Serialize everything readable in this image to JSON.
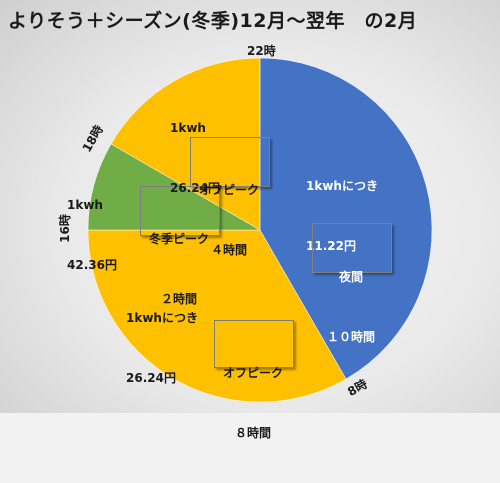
{
  "title": "よりそう＋シーズン(冬季)12月〜翌年　の2月",
  "chart_data": {
    "type": "pie",
    "slices": [
      {
        "period": "夜間",
        "hours": 10,
        "price": "11.22円",
        "color": "#4472c4"
      },
      {
        "period": "オフピーク",
        "hours": 8,
        "price": "26.24円",
        "color": "#ffc000"
      },
      {
        "period": "冬季ピーク",
        "hours": 2,
        "price": "42.36円",
        "color": "#70ad47"
      },
      {
        "period": "オフピーク",
        "hours": 4,
        "price": "26.24円",
        "color": "#ffc000"
      }
    ],
    "hour_labels": {
      "h22": "22時",
      "h8": "8時",
      "h16": "16時",
      "h18": "18時"
    },
    "labels": {
      "night_price_line1": "1kwhにつき",
      "night_price_line2": "11.22円",
      "night_box_line1": "夜間",
      "night_box_line2": "１０時間",
      "day_price_line1": "1kwhにつき",
      "day_price_line2": "26.24円",
      "day_box_line1": "オフピーク",
      "day_box_line2": "８時間",
      "peak_price_line1": "1kwh",
      "peak_price_line2": "42.36円",
      "peak_box_line1": "冬季ピーク",
      "peak_box_line2": "２時間",
      "evening_price_line1": "1kwh",
      "evening_price_line2": "26.24円",
      "evening_box_line1": "オフピーク",
      "evening_box_line2": "４時間"
    }
  }
}
